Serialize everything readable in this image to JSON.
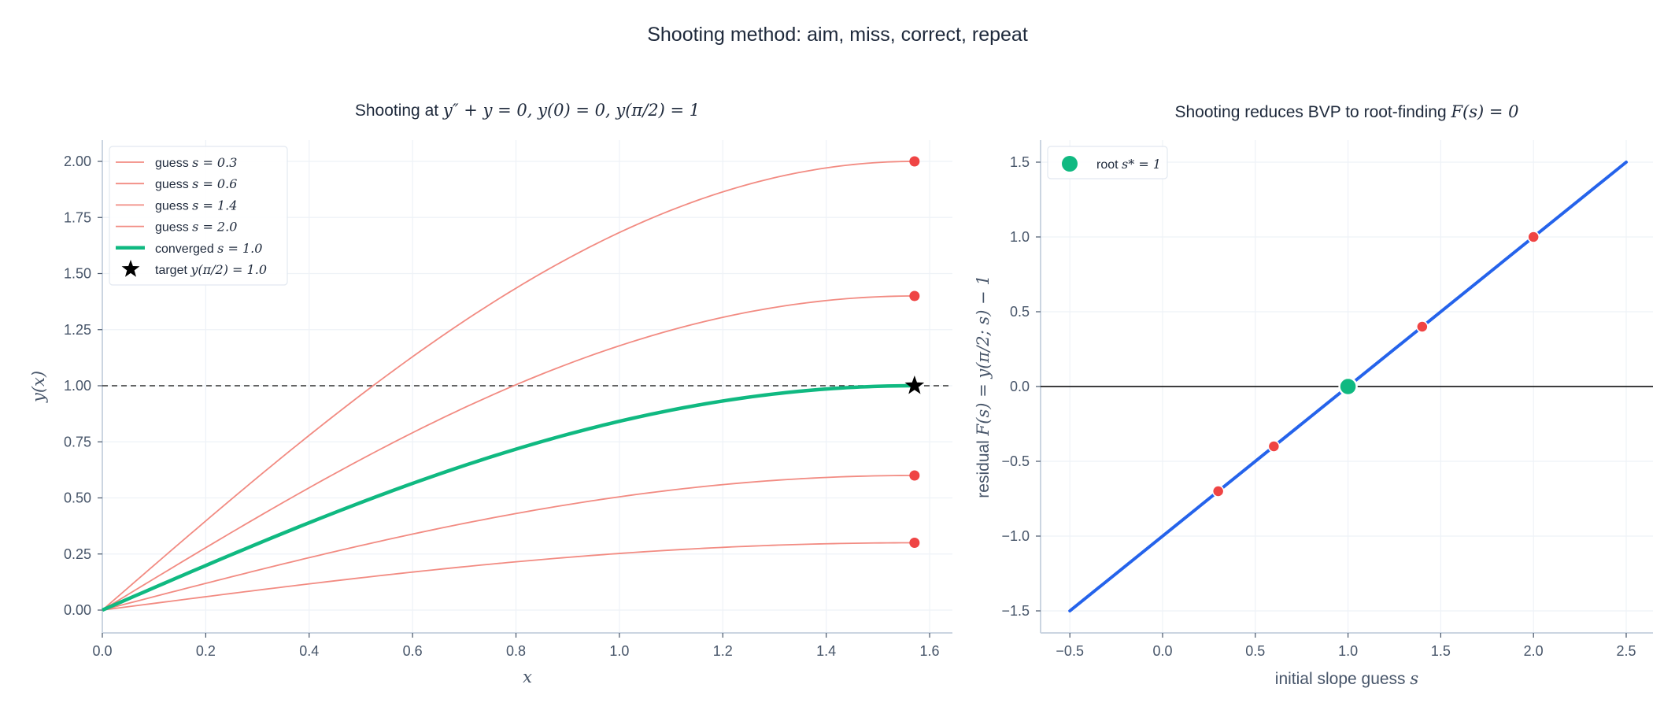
{
  "suptitle": "Shooting method: aim, miss, correct, repeat",
  "colors": {
    "guess": "#f28b82",
    "guess_marker": "#ef4444",
    "converged": "#10b981",
    "residual_line": "#2563eb",
    "root": "#10b981",
    "target": "#000000",
    "grid": "#eef2f7",
    "spine": "#cbd5e1",
    "text": "#1e293b",
    "tick_text": "#475569"
  },
  "left": {
    "title_prefix": "Shooting at ",
    "title_math": "y″ + y = 0,  y(0) = 0, y(π/2) = 1",
    "xlabel": "x",
    "ylabel": "y(x)",
    "xticks": [
      "0.0",
      "0.2",
      "0.4",
      "0.6",
      "0.8",
      "1.0",
      "1.2",
      "1.4",
      "1.6"
    ],
    "yticks": [
      "0.00",
      "0.25",
      "0.50",
      "0.75",
      "1.00",
      "1.25",
      "1.50",
      "1.75",
      "2.00"
    ],
    "legend": [
      {
        "label_text": "guess ",
        "label_math": "s = 0.3"
      },
      {
        "label_text": "guess ",
        "label_math": "s = 0.6"
      },
      {
        "label_text": "guess ",
        "label_math": "s = 1.4"
      },
      {
        "label_text": "guess ",
        "label_math": "s = 2.0"
      },
      {
        "label_text": "converged ",
        "label_math": "s = 1.0"
      },
      {
        "label_text": "target  ",
        "label_math": "y(π/2) = 1.0"
      }
    ]
  },
  "right": {
    "title_prefix": "Shooting reduces BVP to root-finding ",
    "title_math": "F(s) = 0",
    "xlabel_text": "initial slope guess ",
    "xlabel_math": "s",
    "ylabel_text": "residual ",
    "ylabel_math": "F(s) = y(π/2; s) − 1",
    "xticks": [
      "−0.5",
      "0.0",
      "0.5",
      "1.0",
      "1.5",
      "2.0",
      "2.5"
    ],
    "yticks": [
      "−1.5",
      "−1.0",
      "−0.5",
      "0.0",
      "0.5",
      "1.0",
      "1.5"
    ],
    "legend": [
      {
        "label_text": "root  ",
        "label_math": "s* = 1"
      }
    ]
  },
  "chart_data": [
    {
      "type": "line",
      "title": "Shooting at y'' + y = 0, y(0) = 0, y(π/2) = 1",
      "xlabel": "x",
      "ylabel": "y(x)",
      "xlim": [
        0.0,
        1.65
      ],
      "ylim": [
        -0.1,
        2.1
      ],
      "grid": true,
      "legend_position": "upper left",
      "x": [
        0.0,
        0.1963,
        0.3927,
        0.589,
        0.7854,
        0.9817,
        1.1781,
        1.3744,
        1.5708
      ],
      "series": [
        {
          "name": "guess s = 0.3",
          "formula": "0.3*sin(x)",
          "values": [
            0.0,
            0.0585,
            0.1148,
            0.1667,
            0.2121,
            0.2494,
            0.2772,
            0.2942,
            0.3
          ],
          "endpoint": [
            1.5708,
            0.3
          ]
        },
        {
          "name": "guess s = 0.6",
          "formula": "0.6*sin(x)",
          "values": [
            0.0,
            0.1171,
            0.2296,
            0.3333,
            0.4243,
            0.4989,
            0.5543,
            0.5885,
            0.6
          ],
          "endpoint": [
            1.5708,
            0.6
          ]
        },
        {
          "name": "guess s = 1.4",
          "formula": "1.4*sin(x)",
          "values": [
            0.0,
            0.2731,
            0.5358,
            0.7778,
            0.9899,
            1.164,
            1.2934,
            1.3731,
            1.4
          ],
          "endpoint": [
            1.5708,
            1.4
          ]
        },
        {
          "name": "guess s = 2.0",
          "formula": "2.0*sin(x)",
          "values": [
            0.0,
            0.3902,
            0.7654,
            1.1111,
            1.4142,
            1.6629,
            1.8478,
            1.9616,
            2.0
          ],
          "endpoint": [
            1.5708,
            2.0
          ]
        },
        {
          "name": "converged s = 1.0",
          "formula": "sin(x)",
          "values": [
            0.0,
            0.1951,
            0.3827,
            0.5556,
            0.7071,
            0.8315,
            0.9239,
            0.9808,
            1.0
          ]
        }
      ],
      "reference_line": {
        "y": 1.0,
        "style": "dashed"
      },
      "target_marker": {
        "name": "target y(π/2) = 1.0",
        "x": 1.5708,
        "y": 1.0,
        "marker": "star"
      }
    },
    {
      "type": "line",
      "title": "Shooting reduces BVP to root-finding F(s) = 0",
      "xlabel": "initial slope guess s",
      "ylabel": "residual F(s) = y(π/2; s) − 1",
      "xlim": [
        -0.65,
        2.65
      ],
      "ylim": [
        -1.65,
        1.65
      ],
      "grid": true,
      "legend_position": "upper left",
      "series": [
        {
          "name": "F(s) = s − 1",
          "x": [
            -0.5,
            2.5
          ],
          "values": [
            -1.5,
            1.5
          ]
        }
      ],
      "guess_points": {
        "x": [
          0.3,
          0.6,
          1.4,
          2.0
        ],
        "y": [
          -0.7,
          -0.4,
          0.4,
          1.0
        ]
      },
      "root": {
        "name": "root s* = 1",
        "x": 1.0,
        "y": 0.0
      },
      "reference_line": {
        "y": 0.0,
        "style": "solid"
      }
    }
  ]
}
